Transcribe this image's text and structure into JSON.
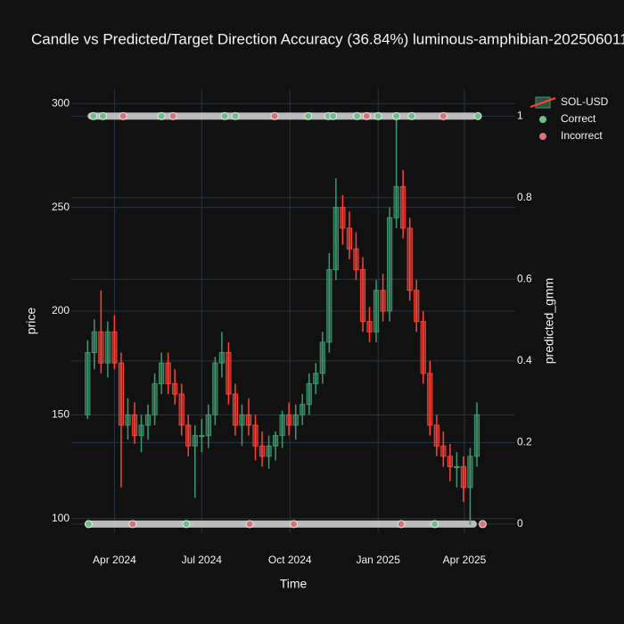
{
  "chart_data": {
    "type": "candlestick",
    "title": "Candle vs Predicted/Target Direction Accuracy (36.84%) luminous-amphibian-202506011",
    "xlabel": "Time",
    "ylabel": "price",
    "y2label": "predicted_gmm",
    "xlim": [
      "2024-02-16",
      "2025-05-24"
    ],
    "xticks": [
      {
        "value": "2024-04-01",
        "label": "Apr 2024"
      },
      {
        "value": "2024-07-01",
        "label": "Jul 2024"
      },
      {
        "value": "2024-10-01",
        "label": "Oct 2024"
      },
      {
        "value": "2025-01-01",
        "label": "Jan 2025"
      },
      {
        "value": "2025-04-01",
        "label": "Apr 2025"
      }
    ],
    "ylim": [
      93,
      307
    ],
    "yticks": [
      100,
      150,
      200,
      250,
      300
    ],
    "y2lim": [
      -0.022,
      1.066
    ],
    "y2ticks": [
      0,
      0.2,
      0.4,
      0.6,
      0.8,
      1
    ],
    "grid": true,
    "legend": "top-right",
    "series": [
      {
        "name": "SOL-USD",
        "type": "candlestick",
        "increasing_color": "#3d9970",
        "decreasing_color": "#ff4136",
        "x": [
          "2024-03-04",
          "2024-03-11",
          "2024-03-18",
          "2024-03-25",
          "2024-04-01",
          "2024-04-08",
          "2024-04-15",
          "2024-04-22",
          "2024-04-29",
          "2024-05-06",
          "2024-05-13",
          "2024-05-20",
          "2024-05-27",
          "2024-06-03",
          "2024-06-10",
          "2024-06-17",
          "2024-06-24",
          "2024-07-01",
          "2024-07-08",
          "2024-07-15",
          "2024-07-22",
          "2024-07-29",
          "2024-08-05",
          "2024-08-12",
          "2024-08-19",
          "2024-08-26",
          "2024-09-02",
          "2024-09-09",
          "2024-09-16",
          "2024-09-23",
          "2024-09-30",
          "2024-10-07",
          "2024-10-14",
          "2024-10-21",
          "2024-10-28",
          "2024-11-04",
          "2024-11-11",
          "2024-11-18",
          "2024-11-25",
          "2024-12-02",
          "2024-12-09",
          "2024-12-16",
          "2024-12-23",
          "2024-12-30",
          "2025-01-06",
          "2025-01-13",
          "2025-01-20",
          "2025-01-27",
          "2025-02-03",
          "2025-02-10",
          "2025-02-17",
          "2025-02-24",
          "2025-03-03",
          "2025-03-10",
          "2025-03-17",
          "2025-03-24",
          "2025-03-31",
          "2025-04-07",
          "2025-04-14"
        ],
        "open": [
          150,
          180,
          190,
          175,
          190,
          175,
          145,
          150,
          140,
          145,
          150,
          165,
          175,
          165,
          160,
          145,
          135,
          140,
          140,
          150,
          175,
          180,
          160,
          145,
          150,
          145,
          135,
          130,
          135,
          140,
          150,
          145,
          150,
          155,
          165,
          170,
          185,
          220,
          250,
          240,
          230,
          220,
          195,
          190,
          210,
          200,
          245,
          260,
          240,
          210,
          195,
          170,
          145,
          135,
          130,
          125,
          125,
          115,
          130
        ],
        "high": [
          186,
          196,
          210,
          195,
          198,
          180,
          158,
          156,
          150,
          155,
          170,
          180,
          180,
          172,
          165,
          150,
          145,
          148,
          155,
          178,
          190,
          185,
          165,
          155,
          158,
          150,
          142,
          140,
          142,
          152,
          156,
          155,
          160,
          170,
          175,
          190,
          228,
          264,
          256,
          248,
          238,
          226,
          202,
          215,
          218,
          250,
          293,
          268,
          245,
          215,
          200,
          176,
          150,
          142,
          136,
          132,
          130,
          134,
          156
        ],
        "low": [
          148,
          172,
          170,
          168,
          172,
          115,
          138,
          136,
          132,
          138,
          145,
          160,
          160,
          155,
          140,
          130,
          110,
          132,
          134,
          145,
          168,
          155,
          140,
          135,
          140,
          128,
          125,
          124,
          128,
          134,
          140,
          138,
          145,
          150,
          160,
          165,
          180,
          215,
          232,
          225,
          215,
          190,
          185,
          185,
          195,
          195,
          240,
          235,
          205,
          190,
          165,
          140,
          130,
          125,
          118,
          115,
          108,
          97,
          125
        ],
        "close": [
          180,
          190,
          175,
          190,
          175,
          145,
          150,
          140,
          145,
          150,
          165,
          175,
          165,
          160,
          145,
          135,
          140,
          140,
          150,
          175,
          180,
          160,
          145,
          150,
          145,
          135,
          130,
          135,
          140,
          150,
          145,
          150,
          155,
          165,
          170,
          185,
          220,
          250,
          240,
          230,
          220,
          195,
          190,
          210,
          200,
          245,
          260,
          240,
          210,
          195,
          170,
          145,
          135,
          130,
          125,
          125,
          115,
          130,
          150
        ]
      },
      {
        "name": "Correct",
        "type": "scatter",
        "axis": "y2",
        "color": "#6fbf8a",
        "x": [
          "2024-03-05",
          "2024-03-10",
          "2024-03-20",
          "2024-05-20",
          "2024-06-15",
          "2024-07-25",
          "2024-08-05",
          "2024-10-20",
          "2024-11-10",
          "2024-11-15",
          "2024-12-10",
          "2025-01-01",
          "2025-01-20",
          "2025-02-05",
          "2025-03-01",
          "2025-04-15"
        ],
        "values": [
          0,
          1,
          1,
          1,
          0,
          1,
          1,
          1,
          1,
          1,
          1,
          1,
          1,
          1,
          0,
          1
        ]
      },
      {
        "name": "Incorrect",
        "type": "scatter",
        "axis": "y2",
        "color": "#d9727a",
        "x": [
          "2024-04-10",
          "2024-04-20",
          "2024-06-01",
          "2024-08-20",
          "2024-09-15",
          "2024-10-05",
          "2024-12-20",
          "2025-01-25",
          "2025-03-10",
          "2025-04-20"
        ],
        "values": [
          1,
          0,
          1,
          0,
          1,
          0,
          1,
          0,
          1,
          0
        ]
      }
    ]
  }
}
